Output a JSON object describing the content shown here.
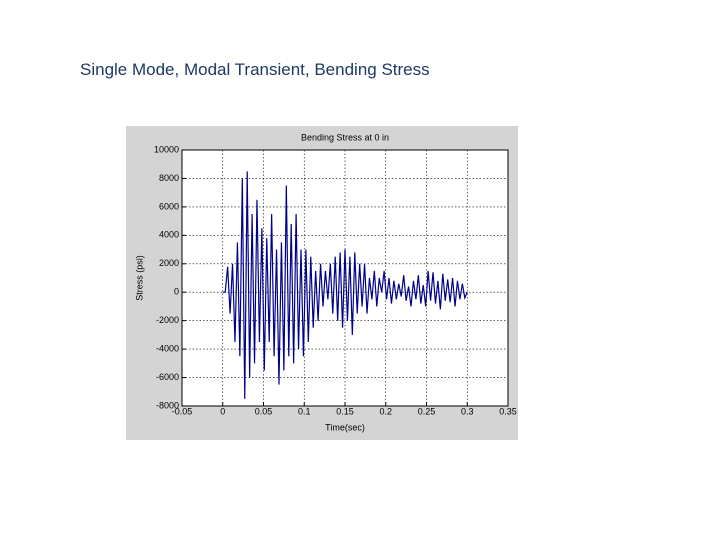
{
  "slide_title": "Single Mode, Modal Transient, Bending Stress",
  "chart_data": {
    "type": "line",
    "title": "Bending Stress at 0 in",
    "x_label": "Time(sec)",
    "y_label": "Stress (psi)",
    "x": [
      0,
      0.003,
      0.006,
      0.009,
      0.012,
      0.015,
      0.018,
      0.021,
      0.024,
      0.027,
      0.03,
      0.033,
      0.036,
      0.039,
      0.042,
      0.045,
      0.048,
      0.051,
      0.054,
      0.057,
      0.06,
      0.063,
      0.066,
      0.069,
      0.072,
      0.075,
      0.078,
      0.081,
      0.084,
      0.087,
      0.09,
      0.093,
      0.096,
      0.099,
      0.102,
      0.105,
      0.108,
      0.111,
      0.114,
      0.117,
      0.12,
      0.123,
      0.126,
      0.129,
      0.132,
      0.135,
      0.138,
      0.141,
      0.144,
      0.147,
      0.15,
      0.153,
      0.156,
      0.159,
      0.162,
      0.165,
      0.168,
      0.171,
      0.174,
      0.177,
      0.18,
      0.183,
      0.186,
      0.189,
      0.192,
      0.195,
      0.198,
      0.201,
      0.204,
      0.207,
      0.21,
      0.213,
      0.216,
      0.219,
      0.222,
      0.225,
      0.228,
      0.231,
      0.234,
      0.237,
      0.24,
      0.243,
      0.246,
      0.249,
      0.252,
      0.255,
      0.258,
      0.261,
      0.264,
      0.267,
      0.27,
      0.273,
      0.276,
      0.279,
      0.282,
      0.285,
      0.288,
      0.291,
      0.294,
      0.297,
      0.3
    ],
    "series": [
      {
        "name": "Stress",
        "color": "#00008b",
        "values": [
          0,
          0,
          1800,
          -1500,
          2000,
          -3500,
          3500,
          -4500,
          8000,
          -7500,
          8500,
          -6000,
          5500,
          -5000,
          6500,
          -3500,
          4500,
          -5500,
          3800,
          -3500,
          5500,
          -4500,
          3000,
          -6500,
          3500,
          -5500,
          7500,
          -4500,
          4800,
          -5000,
          5500,
          -4000,
          3000,
          -4500,
          3000,
          -3500,
          2500,
          -2500,
          1500,
          -2000,
          2000,
          -1000,
          1500,
          -500,
          2000,
          -1500,
          2500,
          -2000,
          2800,
          -2500,
          3000,
          -2000,
          2500,
          -3000,
          2800,
          -1500,
          2000,
          -1000,
          2000,
          -1500,
          1000,
          -500,
          1500,
          -1000,
          1000,
          0,
          1500,
          -500,
          1000,
          -800,
          800,
          -500,
          600,
          -300,
          1200,
          -600,
          400,
          -1000,
          800,
          -500,
          1200,
          -800,
          500,
          -1000,
          1500,
          -600,
          1400,
          -800,
          800,
          -1200,
          1300,
          -600,
          900,
          -700,
          1000,
          -1000,
          800,
          -500,
          600,
          -400,
          0
        ]
      }
    ],
    "xlim": [
      -0.05,
      0.35
    ],
    "xticks": [
      -0.05,
      0,
      0.05,
      0.1,
      0.15,
      0.2,
      0.25,
      0.3,
      0.35
    ],
    "ylim": [
      -8000,
      10000
    ],
    "yticks": [
      -8000,
      -6000,
      -4000,
      -2000,
      0,
      2000,
      4000,
      6000,
      8000,
      10000
    ],
    "grid": true
  }
}
